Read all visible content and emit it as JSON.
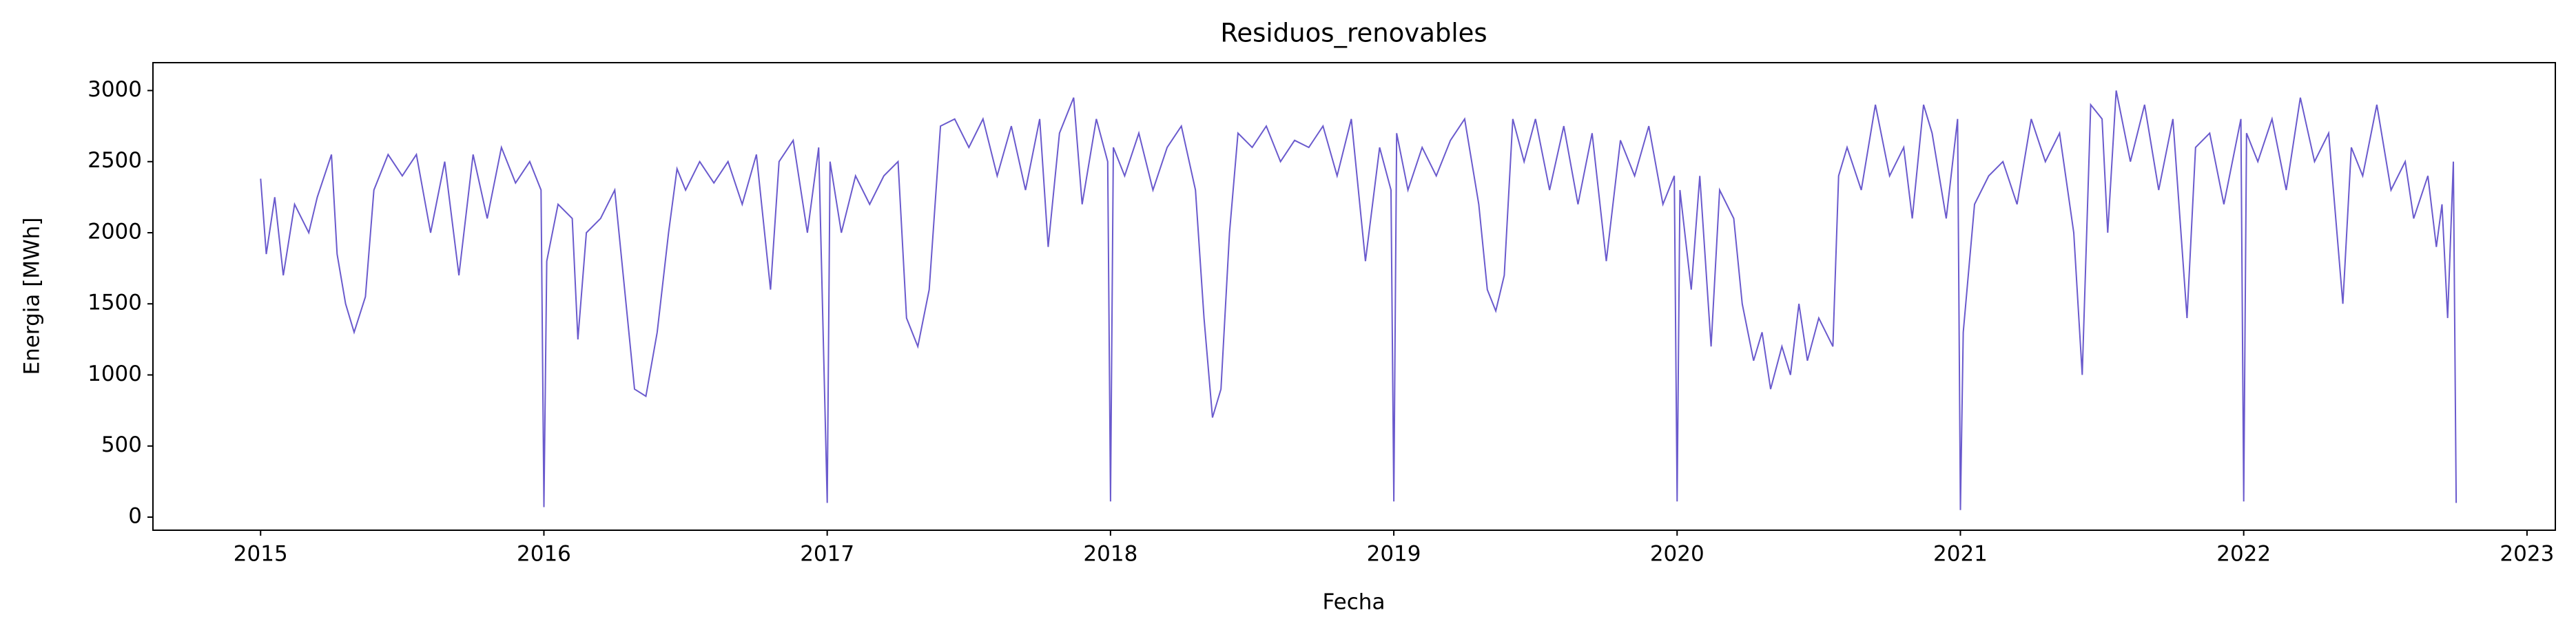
{
  "chart_data": {
    "type": "line",
    "title": "Residuos_renovables",
    "x_label": "Fecha",
    "y_label": "Energia [MWh]",
    "color": "#6a5acd",
    "grid": false,
    "xlim": [
      2014.62,
      2023.1
    ],
    "xticks": [
      2015,
      2016,
      2017,
      2018,
      2019,
      2020,
      2021,
      2022,
      2023
    ],
    "ylim": [
      -92,
      3196
    ],
    "yticks": [
      0,
      500,
      1000,
      1500,
      2000,
      2500,
      3000
    ],
    "x": [
      2015.0,
      2015.02,
      2015.05,
      2015.08,
      2015.12,
      2015.17,
      2015.2,
      2015.25,
      2015.27,
      2015.3,
      2015.33,
      2015.37,
      2015.4,
      2015.45,
      2015.5,
      2015.55,
      2015.6,
      2015.65,
      2015.7,
      2015.75,
      2015.8,
      2015.85,
      2015.9,
      2015.95,
      2015.99,
      2016.0,
      2016.01,
      2016.05,
      2016.1,
      2016.12,
      2016.15,
      2016.2,
      2016.25,
      2016.28,
      2016.32,
      2016.36,
      2016.4,
      2016.44,
      2016.47,
      2016.5,
      2016.55,
      2016.6,
      2016.65,
      2016.7,
      2016.75,
      2016.8,
      2016.83,
      2016.88,
      2016.93,
      2016.97,
      2017.0,
      2017.01,
      2017.05,
      2017.1,
      2017.15,
      2017.2,
      2017.25,
      2017.28,
      2017.32,
      2017.36,
      2017.4,
      2017.45,
      2017.5,
      2017.55,
      2017.6,
      2017.65,
      2017.7,
      2017.75,
      2017.78,
      2017.82,
      2017.87,
      2017.9,
      2017.95,
      2017.99,
      2018.0,
      2018.01,
      2018.05,
      2018.1,
      2018.15,
      2018.2,
      2018.25,
      2018.3,
      2018.33,
      2018.36,
      2018.39,
      2018.42,
      2018.45,
      2018.5,
      2018.55,
      2018.6,
      2018.65,
      2018.7,
      2018.75,
      2018.8,
      2018.85,
      2018.9,
      2018.95,
      2018.99,
      2019.0,
      2019.01,
      2019.05,
      2019.1,
      2019.15,
      2019.2,
      2019.25,
      2019.3,
      2019.33,
      2019.36,
      2019.39,
      2019.42,
      2019.46,
      2019.5,
      2019.55,
      2019.6,
      2019.65,
      2019.7,
      2019.75,
      2019.8,
      2019.85,
      2019.9,
      2019.95,
      2019.99,
      2020.0,
      2020.01,
      2020.05,
      2020.08,
      2020.12,
      2020.15,
      2020.2,
      2020.23,
      2020.27,
      2020.3,
      2020.33,
      2020.37,
      2020.4,
      2020.43,
      2020.46,
      2020.5,
      2020.55,
      2020.57,
      2020.6,
      2020.65,
      2020.7,
      2020.75,
      2020.8,
      2020.83,
      2020.87,
      2020.9,
      2020.95,
      2020.99,
      2021.0,
      2021.01,
      2021.05,
      2021.1,
      2021.15,
      2021.2,
      2021.25,
      2021.3,
      2021.35,
      2021.4,
      2021.43,
      2021.46,
      2021.5,
      2021.52,
      2021.55,
      2021.6,
      2021.65,
      2021.7,
      2021.75,
      2021.8,
      2021.83,
      2021.88,
      2021.93,
      2021.99,
      2022.0,
      2022.01,
      2022.05,
      2022.1,
      2022.15,
      2022.2,
      2022.25,
      2022.3,
      2022.35,
      2022.38,
      2022.42,
      2022.47,
      2022.52,
      2022.57,
      2022.6,
      2022.65,
      2022.68,
      2022.7,
      2022.72,
      2022.74,
      2022.75
    ],
    "values": [
      2380,
      1850,
      2250,
      1700,
      2200,
      2000,
      2250,
      2550,
      1850,
      1500,
      1300,
      1550,
      2300,
      2550,
      2400,
      2550,
      2000,
      2500,
      1700,
      2550,
      2100,
      2600,
      2350,
      2500,
      2300,
      70,
      1800,
      2200,
      2100,
      1250,
      2000,
      2100,
      2300,
      1700,
      900,
      850,
      1300,
      2000,
      2450,
      2300,
      2500,
      2350,
      2500,
      2200,
      2550,
      1600,
      2500,
      2650,
      2000,
      2600,
      100,
      2500,
      2000,
      2400,
      2200,
      2400,
      2500,
      1400,
      1200,
      1600,
      2750,
      2800,
      2600,
      2800,
      2400,
      2750,
      2300,
      2800,
      1900,
      2700,
      2950,
      2200,
      2800,
      2500,
      110,
      2600,
      2400,
      2700,
      2300,
      2600,
      2750,
      2300,
      1400,
      700,
      900,
      2000,
      2700,
      2600,
      2750,
      2500,
      2650,
      2600,
      2750,
      2400,
      2800,
      1800,
      2600,
      2300,
      110,
      2700,
      2300,
      2600,
      2400,
      2650,
      2800,
      2200,
      1600,
      1450,
      1700,
      2800,
      2500,
      2800,
      2300,
      2750,
      2200,
      2700,
      1800,
      2650,
      2400,
      2750,
      2200,
      2400,
      110,
      2300,
      1600,
      2400,
      1200,
      2300,
      2100,
      1500,
      1100,
      1300,
      900,
      1200,
      1000,
      1500,
      1100,
      1400,
      1200,
      2400,
      2600,
      2300,
      2900,
      2400,
      2600,
      2100,
      2900,
      2700,
      2100,
      2800,
      50,
      1300,
      2200,
      2400,
      2500,
      2200,
      2800,
      2500,
      2700,
      2000,
      1000,
      2900,
      2800,
      2000,
      3000,
      2500,
      2900,
      2300,
      2800,
      1400,
      2600,
      2700,
      2200,
      2800,
      110,
      2700,
      2500,
      2800,
      2300,
      2950,
      2500,
      2700,
      1500,
      2600,
      2400,
      2900,
      2300,
      2500,
      2100,
      2400,
      1900,
      2200,
      1400,
      2500,
      100
    ]
  }
}
